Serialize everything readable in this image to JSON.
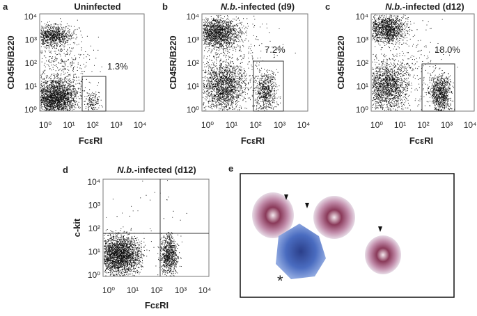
{
  "panels": [
    {
      "label": "a",
      "title": "Uninfected",
      "y_axis": "CD45R/B220",
      "x_axis": "FcεRI",
      "x_ticks": [
        "10⁰",
        "10¹",
        "10²",
        "10³",
        "10⁴"
      ],
      "y_ticks": [
        "10⁴",
        "10³",
        "10²",
        "10¹",
        "10⁰"
      ],
      "gate": "1.3%"
    },
    {
      "label": "b",
      "title_italic": "N.b.",
      "title": "-infected (d9)",
      "y_axis": "CD45R/B220",
      "x_axis": "FcεRI",
      "x_ticks": [
        "10⁰",
        "10¹",
        "10²",
        "10³",
        "10⁴"
      ],
      "y_ticks": [
        "10⁴",
        "10³",
        "10²",
        "10¹",
        "10⁰"
      ],
      "gate": "7.2%"
    },
    {
      "label": "c",
      "title_italic": "N.b.",
      "title": "-infected (d12)",
      "y_axis": "CD45R/B220",
      "x_axis": "FcεRI",
      "x_ticks": [
        "10⁰",
        "10¹",
        "10²",
        "10³",
        "10⁴"
      ],
      "y_ticks": [
        "10⁴",
        "10³",
        "10²",
        "10¹",
        "10⁰"
      ],
      "gate": "18.0%"
    },
    {
      "label": "d",
      "title_italic": "N.b.",
      "title": "-infected (d12)",
      "y_axis": "c-kit",
      "x_axis": "FcεRI",
      "x_ticks": [
        "10⁰",
        "10¹",
        "10²",
        "10³",
        "10⁴"
      ],
      "y_ticks": [
        "10⁴",
        "10³",
        "10²",
        "10¹",
        "10⁰"
      ]
    }
  ],
  "micrograph": {
    "label": "e",
    "marker": "*"
  }
}
